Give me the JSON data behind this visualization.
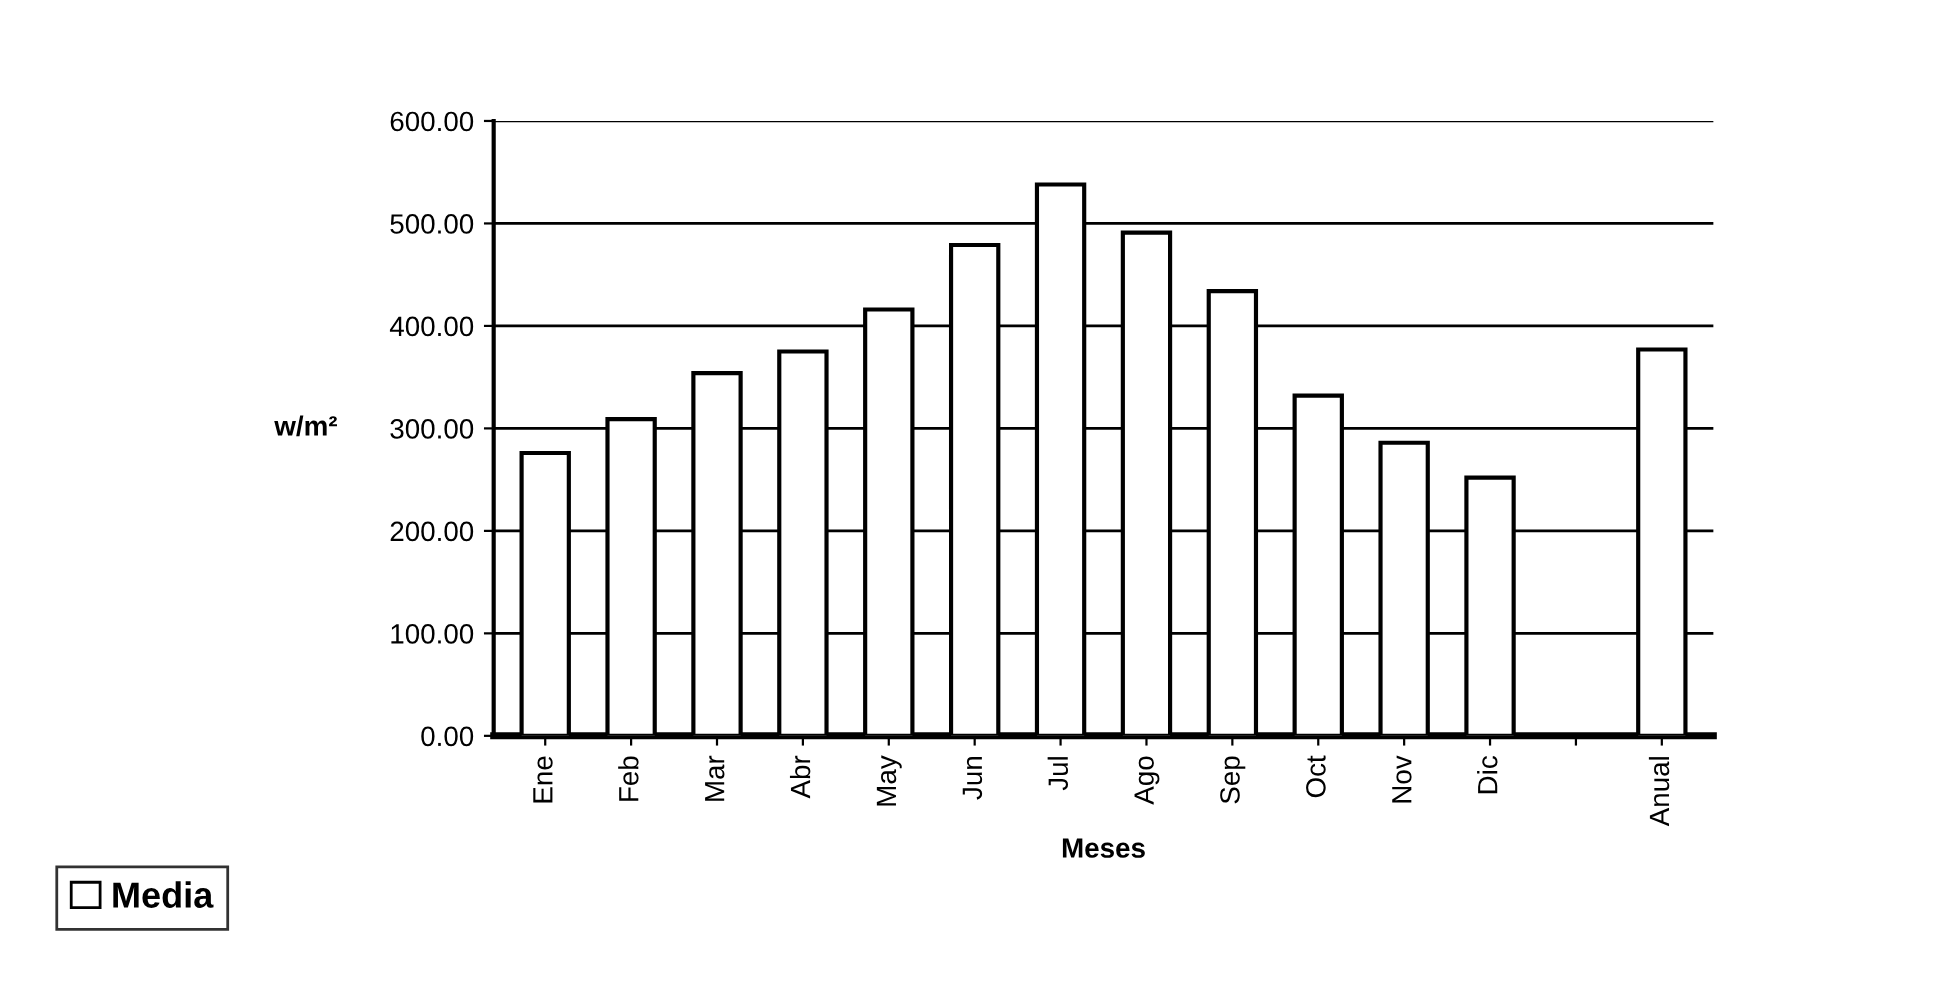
{
  "chart_data": {
    "type": "bar",
    "xlabel": "Meses",
    "ylabel": "w/m²",
    "categories": [
      "Ene",
      "Feb",
      "Mar",
      "Abr",
      "May",
      "Jun",
      "Jul",
      "Ago",
      "Sep",
      "Oct",
      "Nov",
      "Dic",
      null,
      "Anual"
    ],
    "series": [
      {
        "name": "Media",
        "color": "#ffffff",
        "values": [
          276,
          309,
          354,
          375,
          416,
          479,
          538,
          491,
          434,
          332,
          286,
          252,
          null,
          377
        ]
      }
    ],
    "ylim": [
      0,
      600
    ],
    "yticks": [
      {
        "value": 0,
        "label": "0.00"
      },
      {
        "value": 100,
        "label": "100.00"
      },
      {
        "value": 200,
        "label": "200.00"
      },
      {
        "value": 300,
        "label": "300.00"
      },
      {
        "value": 400,
        "label": "400.00"
      },
      {
        "value": 500,
        "label": "500.00"
      },
      {
        "value": 600,
        "label": "600.00"
      }
    ],
    "grid": "y",
    "legend": "bottom left"
  }
}
